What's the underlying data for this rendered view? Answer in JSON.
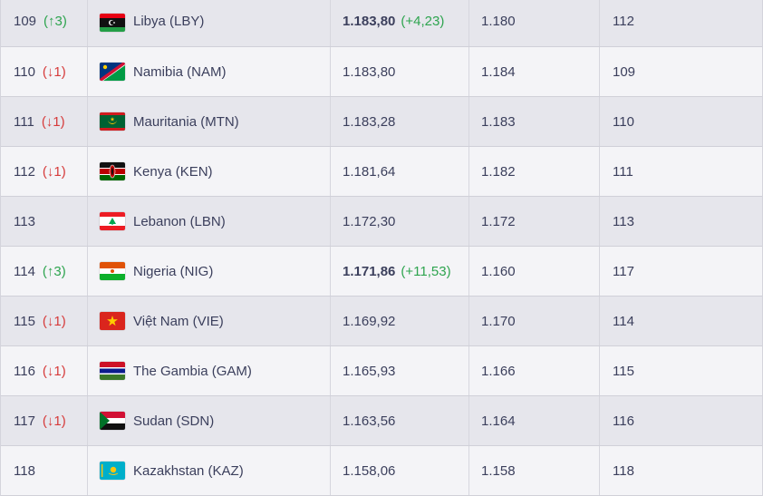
{
  "colors": {
    "up": "#2ea44f",
    "down": "#d63b3b",
    "text": "#3b3f5c",
    "row_odd": "#e6e6ec",
    "row_even": "#f4f4f7"
  },
  "rows": [
    {
      "rank": "109",
      "change": "(↑3)",
      "change_dir": "up",
      "country": "Libya (LBY)",
      "flag": "libya-flag",
      "points": "1.183,80",
      "points_bold": true,
      "diff": "(+4,23)",
      "prev_points": "1.180",
      "prev_rank": "112"
    },
    {
      "rank": "110",
      "change": "(↓1)",
      "change_dir": "down",
      "country": "Namibia (NAM)",
      "flag": "namibia-flag",
      "points": "1.183,80",
      "points_bold": false,
      "diff": "",
      "prev_points": "1.184",
      "prev_rank": "109"
    },
    {
      "rank": "111",
      "change": "(↓1)",
      "change_dir": "down",
      "country": "Mauritania (MTN)",
      "flag": "mauritania-flag",
      "points": "1.183,28",
      "points_bold": false,
      "diff": "",
      "prev_points": "1.183",
      "prev_rank": "110"
    },
    {
      "rank": "112",
      "change": "(↓1)",
      "change_dir": "down",
      "country": "Kenya (KEN)",
      "flag": "kenya-flag",
      "points": "1.181,64",
      "points_bold": false,
      "diff": "",
      "prev_points": "1.182",
      "prev_rank": "111"
    },
    {
      "rank": "113",
      "change": "",
      "change_dir": "",
      "country": "Lebanon (LBN)",
      "flag": "lebanon-flag",
      "points": "1.172,30",
      "points_bold": false,
      "diff": "",
      "prev_points": "1.172",
      "prev_rank": "113"
    },
    {
      "rank": "114",
      "change": "(↑3)",
      "change_dir": "up",
      "country": "Nigeria (NIG)",
      "flag": "niger-flag",
      "points": "1.171,86",
      "points_bold": true,
      "diff": "(+11,53)",
      "prev_points": "1.160",
      "prev_rank": "117"
    },
    {
      "rank": "115",
      "change": "(↓1)",
      "change_dir": "down",
      "country": "Việt Nam (VIE)",
      "flag": "vietnam-flag",
      "points": "1.169,92",
      "points_bold": false,
      "diff": "",
      "prev_points": "1.170",
      "prev_rank": "114"
    },
    {
      "rank": "116",
      "change": "(↓1)",
      "change_dir": "down",
      "country": "The Gambia (GAM)",
      "flag": "gambia-flag",
      "points": "1.165,93",
      "points_bold": false,
      "diff": "",
      "prev_points": "1.166",
      "prev_rank": "115"
    },
    {
      "rank": "117",
      "change": "(↓1)",
      "change_dir": "down",
      "country": "Sudan (SDN)",
      "flag": "sudan-flag",
      "points": "1.163,56",
      "points_bold": false,
      "diff": "",
      "prev_points": "1.164",
      "prev_rank": "116"
    },
    {
      "rank": "118",
      "change": "",
      "change_dir": "",
      "country": "Kazakhstan (KAZ)",
      "flag": "kazakhstan-flag",
      "points": "1.158,06",
      "points_bold": false,
      "diff": "",
      "prev_points": "1.158",
      "prev_rank": "118"
    }
  ]
}
